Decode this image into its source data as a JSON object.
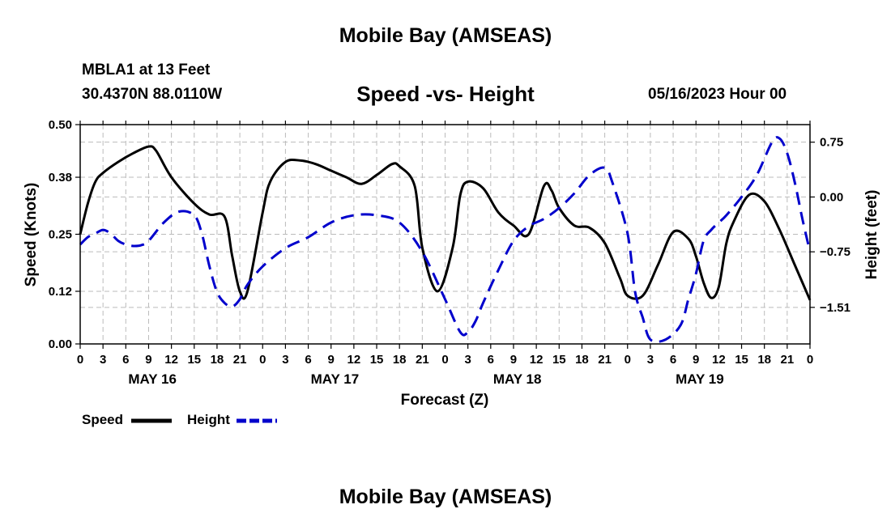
{
  "header": {
    "title": "Mobile Bay (AMSEAS)",
    "station": "MBLA1 at 13 Feet",
    "coords": "30.4370N  88.0110W",
    "subtitle": "Speed -vs- Height",
    "timestamp": "05/16/2023 Hour 00"
  },
  "footer": {
    "title": "Mobile Bay (AMSEAS)"
  },
  "chart_data": {
    "type": "line",
    "title": "Speed -vs- Height",
    "xlabel": "Forecast (Z)",
    "ylabel": "Speed (Knots)",
    "y2label": "Height (feet)",
    "xlim": [
      0,
      96
    ],
    "ylim": [
      0,
      0.5
    ],
    "y2lim": [
      -2.01,
      0.99
    ],
    "y_ticks": [
      0.0,
      0.12,
      0.25,
      0.38,
      0.5
    ],
    "y_tick_labels": [
      "0.00",
      "0.12",
      "0.25",
      "0.38",
      "0.50"
    ],
    "y2_ticks": [
      -1.51,
      -0.75,
      0.0,
      0.75
    ],
    "y2_tick_labels": [
      "−1.51",
      "−0.75",
      "0.00",
      "0.75"
    ],
    "x_ticks": [
      0,
      3,
      6,
      9,
      12,
      15,
      18,
      21,
      24,
      27,
      30,
      33,
      36,
      39,
      42,
      45,
      48,
      51,
      54,
      57,
      60,
      63,
      66,
      69,
      72,
      75,
      78,
      81,
      84,
      87,
      90,
      93,
      96
    ],
    "x_tick_labels": [
      "0",
      "3",
      "6",
      "9",
      "12",
      "15",
      "18",
      "21",
      "0",
      "3",
      "6",
      "9",
      "12",
      "15",
      "18",
      "21",
      "0",
      "3",
      "6",
      "9",
      "12",
      "15",
      "18",
      "21",
      "0",
      "3",
      "6",
      "9",
      "12",
      "15",
      "18",
      "21",
      "0"
    ],
    "date_labels": [
      {
        "x": 9.5,
        "label": "MAY 16"
      },
      {
        "x": 33.5,
        "label": "MAY 17"
      },
      {
        "x": 57.5,
        "label": "MAY 18"
      },
      {
        "x": 81.5,
        "label": "MAY 19"
      }
    ],
    "grid": true,
    "series": [
      {
        "name": "Speed",
        "axis": "left",
        "color": "#000000",
        "dash": "solid",
        "x": [
          0,
          1,
          2,
          3,
          5,
          7,
          9,
          10,
          12,
          15,
          17,
          19,
          20,
          21,
          22,
          24,
          25,
          27,
          29,
          31,
          33,
          35,
          37,
          39,
          41,
          42,
          44,
          45,
          47,
          49,
          50,
          51,
          53,
          55,
          57,
          59,
          61,
          62,
          63,
          65,
          67,
          69,
          71,
          72,
          74,
          76,
          78,
          80,
          81,
          82,
          83,
          84,
          85,
          86,
          88,
          90,
          92,
          94,
          96
        ],
        "values": [
          0.25,
          0.32,
          0.37,
          0.39,
          0.415,
          0.435,
          0.45,
          0.44,
          0.38,
          0.32,
          0.295,
          0.29,
          0.2,
          0.12,
          0.12,
          0.3,
          0.37,
          0.415,
          0.418,
          0.41,
          0.395,
          0.38,
          0.365,
          0.385,
          0.41,
          0.405,
          0.36,
          0.22,
          0.12,
          0.22,
          0.34,
          0.37,
          0.355,
          0.3,
          0.27,
          0.25,
          0.36,
          0.35,
          0.31,
          0.27,
          0.265,
          0.23,
          0.15,
          0.11,
          0.11,
          0.18,
          0.255,
          0.24,
          0.2,
          0.14,
          0.105,
          0.13,
          0.23,
          0.28,
          0.34,
          0.325,
          0.26,
          0.18,
          0.1
        ]
      },
      {
        "name": "Height",
        "axis": "right",
        "color": "#0000cc",
        "dash": "dashed",
        "x": [
          0,
          1,
          2,
          3,
          4,
          5,
          6,
          7,
          8,
          9,
          11,
          13,
          15,
          16,
          17,
          18,
          19,
          20,
          21,
          22,
          24,
          27,
          30,
          33,
          36,
          39,
          42,
          45,
          48,
          50,
          51,
          52,
          53,
          55,
          57,
          59,
          61,
          63,
          65,
          67,
          69,
          70,
          72,
          73,
          74,
          75,
          77,
          79,
          80,
          81,
          82,
          83,
          84,
          85,
          87,
          89,
          91,
          92,
          93,
          94,
          95,
          96
        ],
        "values": [
          -0.65,
          -0.55,
          -0.5,
          -0.45,
          -0.5,
          -0.6,
          -0.65,
          -0.67,
          -0.66,
          -0.6,
          -0.35,
          -0.2,
          -0.25,
          -0.5,
          -0.95,
          -1.3,
          -1.45,
          -1.5,
          -1.4,
          -1.2,
          -0.95,
          -0.7,
          -0.55,
          -0.35,
          -0.25,
          -0.25,
          -0.35,
          -0.75,
          -1.4,
          -1.85,
          -1.85,
          -1.7,
          -1.45,
          -1.0,
          -0.6,
          -0.4,
          -0.3,
          -0.15,
          0.05,
          0.3,
          0.4,
          0.2,
          -0.5,
          -1.3,
          -1.65,
          -1.95,
          -1.95,
          -1.75,
          -1.4,
          -1.05,
          -0.6,
          -0.45,
          -0.35,
          -0.25,
          0.0,
          0.3,
          0.75,
          0.8,
          0.6,
          0.2,
          -0.3,
          -0.75
        ]
      }
    ],
    "legend": [
      {
        "label": "Speed",
        "color": "#000000",
        "dash": "solid"
      },
      {
        "label": "Height",
        "color": "#0000cc",
        "dash": "dashed"
      }
    ],
    "legend_position": "bottom-left"
  }
}
